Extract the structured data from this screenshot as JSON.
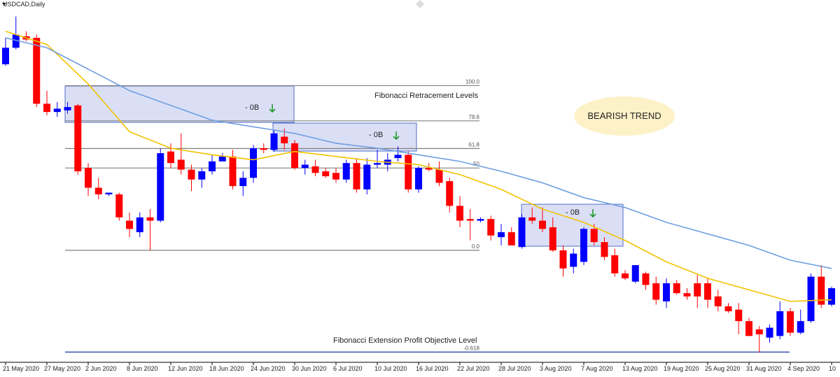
{
  "chart_data": {
    "type": "candlestick",
    "title": "USDCAD,Daily",
    "annotations": {
      "retracement": "Fibonacci Retracement Levels",
      "extension": "Fibonacci Extension Profit Objective Level",
      "trend": "BEARISH TREND",
      "ob": [
        "- 0B",
        "- 0B",
        "- 0B"
      ]
    },
    "categories": [
      "21 May 2020",
      null,
      null,
      null,
      "27 May 2020",
      null,
      null,
      null,
      "2 Jun 2020",
      null,
      null,
      null,
      "8 Jun 2020",
      null,
      null,
      null,
      "12 Jun 2020",
      null,
      null,
      null,
      "18 Jun 2020",
      null,
      null,
      null,
      "24 Jun 2020",
      null,
      null,
      null,
      "30 Jun 2020",
      null,
      null,
      null,
      "6 Jul 2020",
      null,
      null,
      null,
      "10 Jul 2020",
      null,
      null,
      null,
      "16 Jul 2020",
      null,
      null,
      null,
      "22 Jul 2020",
      null,
      null,
      null,
      "28 Jul 2020",
      null,
      null,
      null,
      "3 Aug 2020",
      null,
      null,
      null,
      "7 Aug 2020",
      null,
      null,
      null,
      "13 Aug 2020",
      null,
      null,
      null,
      "19 Aug 2020",
      null,
      null,
      null,
      "25 Aug 2020",
      null,
      null,
      null,
      "31 Aug 2020",
      null,
      null,
      null,
      "4 Sep 2020",
      null,
      null,
      null,
      "10"
    ],
    "open": [
      113,
      123,
      130,
      129,
      89,
      84,
      85,
      88,
      50,
      38,
      34,
      34,
      18,
      11,
      20,
      18,
      60,
      55,
      49,
      43,
      48,
      54,
      57,
      39,
      44,
      62,
      61,
      69,
      65,
      50,
      51,
      48,
      47,
      43,
      53,
      37,
      52,
      52,
      56,
      58,
      37,
      50,
      49,
      42,
      27,
      19,
      18,
      19,
      8,
      11,
      2,
      20,
      18,
      14,
      0,
      -10,
      -7,
      13,
      5,
      -3,
      -14,
      -19,
      -14,
      -20,
      -31,
      -20,
      -26,
      -20,
      -20,
      -28,
      -34,
      -36,
      -43,
      -48,
      -53,
      -52,
      -37,
      -50,
      -43,
      -16,
      -33
    ],
    "high": [
      129,
      142,
      133,
      131,
      97,
      90,
      90,
      89,
      53,
      44,
      35,
      35,
      23,
      23,
      25,
      62,
      65,
      71,
      52,
      50,
      58,
      59,
      61,
      48,
      64,
      65,
      73,
      74,
      67,
      55,
      55,
      50,
      50,
      55,
      56,
      56,
      61,
      59,
      63,
      60,
      51,
      53,
      54,
      44,
      33,
      25,
      20,
      21,
      16,
      14,
      22,
      26,
      26,
      20,
      3,
      1,
      14,
      16,
      8,
      1,
      -12,
      -9,
      -13,
      -16,
      -17,
      -18,
      -23,
      -15,
      -17,
      -24,
      -32,
      -32,
      -41,
      -46,
      -45,
      -31,
      -35,
      -36,
      -14,
      -9,
      -22
    ],
    "low": [
      112,
      122,
      127,
      87,
      82,
      81,
      83,
      46,
      33,
      31,
      33,
      18,
      8,
      8,
      0,
      17,
      50,
      46,
      36,
      38,
      46,
      54,
      37,
      33,
      41,
      59,
      60,
      61,
      49,
      46,
      45,
      44,
      41,
      41,
      35,
      34,
      50,
      48,
      54,
      35,
      35,
      48,
      39,
      23,
      14,
      6,
      17,
      6,
      3,
      3,
      1,
      16,
      11,
      -1,
      -16,
      -14,
      -9,
      3,
      -6,
      -16,
      -18,
      -20,
      -24,
      -33,
      -35,
      -27,
      -30,
      -35,
      -35,
      -37,
      -38,
      -51,
      -52,
      -62,
      -56,
      -54,
      -52,
      -51,
      -44,
      -35,
      -34
    ],
    "close": [
      123,
      131,
      128,
      89,
      84,
      86,
      87,
      48,
      38,
      34,
      35,
      20,
      13,
      20,
      18,
      59,
      53,
      49,
      43,
      48,
      54,
      57,
      39,
      44,
      62,
      61,
      71,
      65,
      50,
      52,
      47,
      45,
      43,
      53,
      37,
      52,
      53,
      55,
      58,
      37,
      50,
      49,
      41,
      27,
      18,
      18,
      19,
      9,
      11,
      3,
      20,
      18,
      13,
      0,
      -11,
      -2,
      13,
      5,
      -4,
      -14,
      -17,
      -9,
      -21,
      -30,
      -20,
      -26,
      -28,
      -28,
      -30,
      -34,
      -37,
      -43,
      -52,
      -51,
      -47,
      -37,
      -50,
      -43,
      -16,
      -33,
      -23
    ],
    "up_color": "#0000ff",
    "down_color": "#ff0000",
    "lines": [
      {
        "color": "#f2c200",
        "x": [
          0,
          4,
          8,
          12,
          16,
          20,
          24,
          28,
          32,
          36,
          40,
          44,
          48,
          52,
          56,
          60,
          64,
          68,
          72,
          76,
          80
        ],
        "values": [
          133,
          125,
          101,
          72,
          62,
          58,
          55,
          60,
          57,
          54,
          52,
          46,
          37,
          25,
          17,
          6,
          -7,
          -17,
          -24,
          -31,
          -30
        ]
      },
      {
        "color": "#6f9fe0",
        "x": [
          0,
          4,
          8,
          12,
          16,
          20,
          24,
          28,
          32,
          36,
          40,
          44,
          48,
          52,
          56,
          60,
          64,
          68,
          72,
          76,
          80
        ],
        "values": [
          129,
          123,
          110,
          97,
          88,
          79,
          75,
          71,
          65,
          62,
          58,
          54,
          48,
          41,
          32,
          26,
          17,
          10,
          3,
          -6,
          -11
        ]
      }
    ],
    "fib_levels": [
      {
        "value": 100,
        "label": "100.0"
      },
      78.6,
      61.8,
      50,
      {
        "value": 0,
        "label": "0.0"
      },
      {
        "value": -61.8,
        "label": "-0.618"
      }
    ],
    "fib_color": "#808080",
    "extension_color": "#3a4fb0",
    "ylim": [
      -68,
      152
    ]
  }
}
